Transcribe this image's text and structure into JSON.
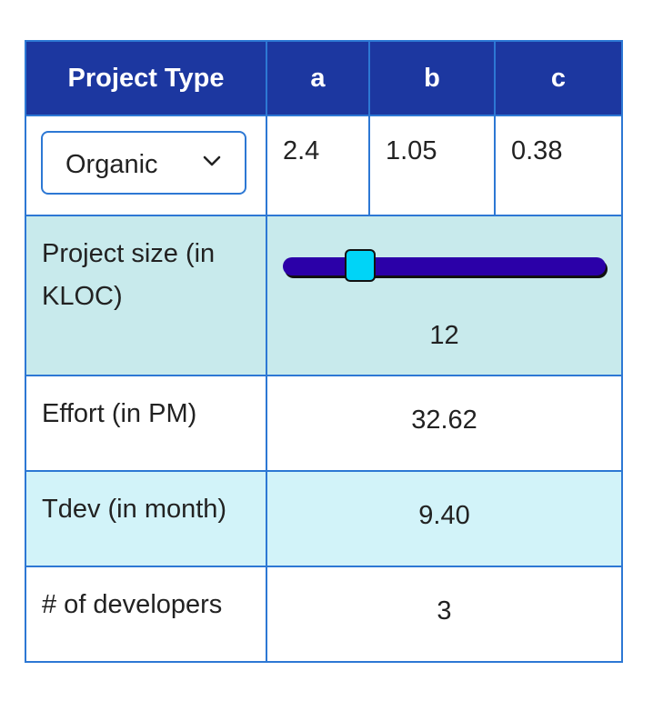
{
  "table": {
    "headers": [
      "Project Type",
      "a",
      "b",
      "c"
    ],
    "project_type": {
      "selected": "Organic",
      "options": [
        "Organic"
      ]
    },
    "coefficients": {
      "a": "2.4",
      "b": "1.05",
      "c": "0.38"
    },
    "size": {
      "label": "Project size (in KLOC)",
      "value": "12",
      "slider_fraction": 0.24
    },
    "effort": {
      "label": "Effort (in PM)",
      "value": "32.62"
    },
    "tdev": {
      "label": "Tdev (in month)",
      "value": "9.40"
    },
    "developers": {
      "label": "# of developers",
      "value": "3"
    }
  },
  "icons": {
    "dropdown": "chevron-down-icon"
  },
  "colors": {
    "header_bg": "#1c37a0",
    "border": "#2d78d4",
    "size_row_bg": "#c8eaec",
    "tdev_row_bg": "#d2f3f9",
    "slider_track": "#2b00a8",
    "slider_thumb": "#00d4f7"
  }
}
